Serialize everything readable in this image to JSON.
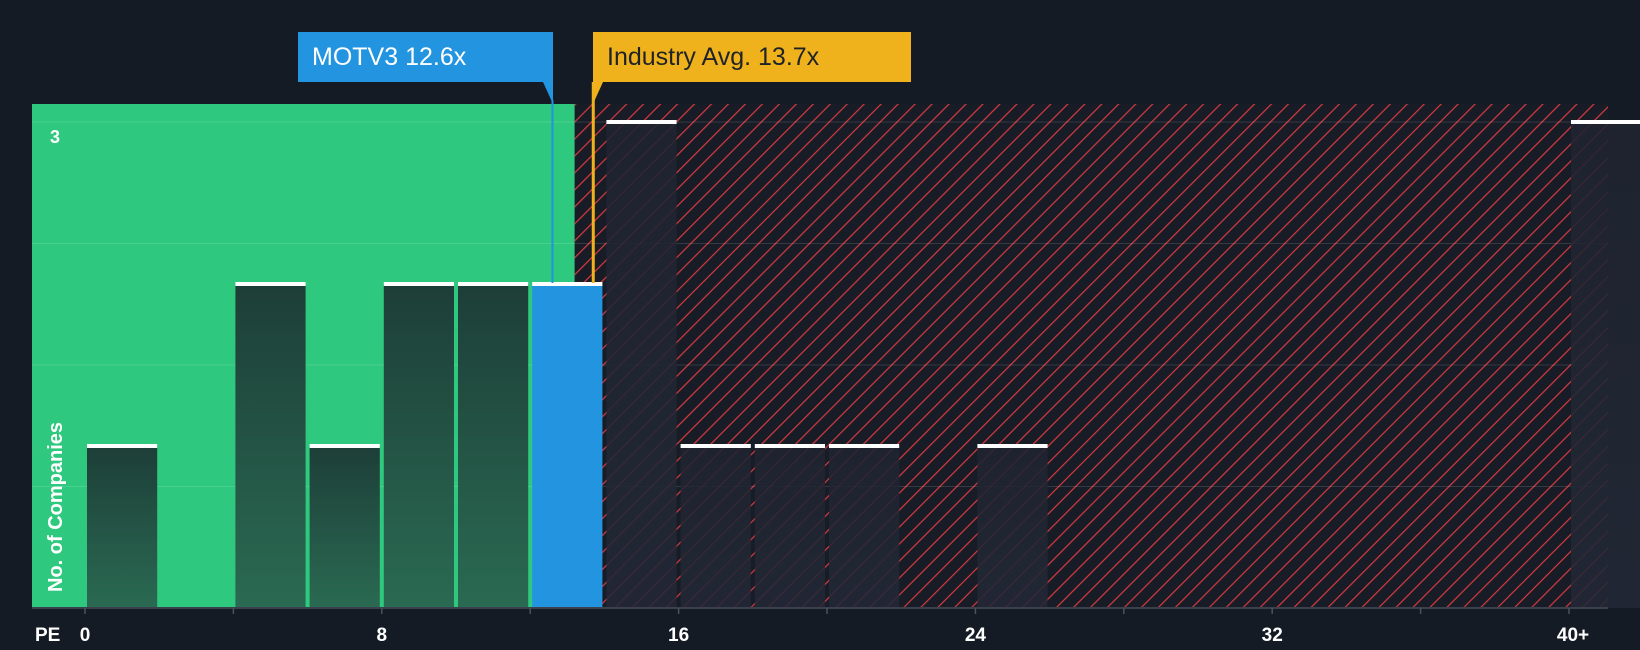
{
  "colors": {
    "background": "#151b24",
    "fair_zone": "#2ec97e",
    "overvalued_zone": "#e0393e",
    "bar_fill_dark": "#1f3d36",
    "bar_fill_company": "#2394e0",
    "company_accent": "#2394e0",
    "industry_accent": "#f0b21c",
    "bar_top": "#ffffff"
  },
  "callouts": {
    "company": "MOTV3 12.6x",
    "industry": "Industry Avg. 13.7x"
  },
  "chart_data": {
    "type": "bar",
    "title": "",
    "xlabel": "PE",
    "ylabel": "No. of Companies",
    "x_ticks": [
      "0",
      "8",
      "16",
      "24",
      "32",
      "40+"
    ],
    "x_tick_values": [
      0,
      8,
      16,
      24,
      32,
      40
    ],
    "y_tick_labels": [
      "3"
    ],
    "ylim": [
      0,
      3
    ],
    "xlim": [
      -1.5,
      41
    ],
    "bin_width": 2,
    "bins": [
      {
        "start": 0,
        "count": 1
      },
      {
        "start": 4,
        "count": 2
      },
      {
        "start": 6,
        "count": 1
      },
      {
        "start": 8,
        "count": 2
      },
      {
        "start": 10,
        "count": 2
      },
      {
        "start": 12,
        "count": 2,
        "highlight": true
      },
      {
        "start": 14,
        "count": 3
      },
      {
        "start": 16,
        "count": 1
      },
      {
        "start": 18,
        "count": 1
      },
      {
        "start": 20,
        "count": 1
      },
      {
        "start": 24,
        "count": 1
      },
      {
        "start": 40,
        "count": 3
      }
    ],
    "company_value": 12.6,
    "industry_avg": 13.7,
    "fair_zone_end": 13.2
  }
}
